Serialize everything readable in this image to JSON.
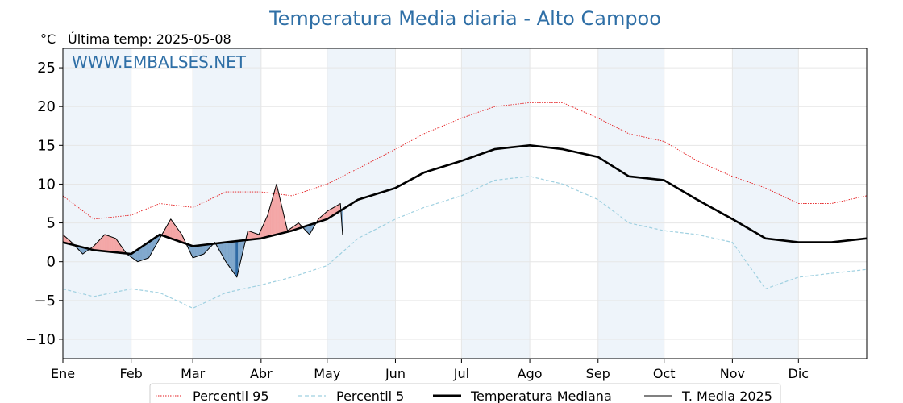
{
  "chart_data": {
    "type": "line",
    "title": "Temperatura Media diaria - Alto Campoo",
    "unit_label": "°C",
    "last_temp_label": "Última temp: 2025-05-08",
    "watermark": "WWW.EMBALSES.NET",
    "xlabel": "",
    "ylabel": "",
    "ylim": [
      -12.5,
      27.5
    ],
    "yticks": [
      -10,
      -5,
      0,
      5,
      10,
      15,
      20,
      25
    ],
    "xlim": [
      1,
      366
    ],
    "months": [
      {
        "label": "Ene",
        "day": 1
      },
      {
        "label": "Feb",
        "day": 32
      },
      {
        "label": "Mar",
        "day": 60
      },
      {
        "label": "Abr",
        "day": 91
      },
      {
        "label": "May",
        "day": 121
      },
      {
        "label": "Jun",
        "day": 152
      },
      {
        "label": "Jul",
        "day": 182
      },
      {
        "label": "Ago",
        "day": 213
      },
      {
        "label": "Sep",
        "day": 244
      },
      {
        "label": "Oct",
        "day": 274
      },
      {
        "label": "Nov",
        "day": 305
      },
      {
        "label": "Dic",
        "day": 335
      }
    ],
    "grid": true,
    "legend_position": "bottom",
    "colors": {
      "p95": "#e41a1c",
      "p5": "#9fd0e0",
      "median": "#000000",
      "current": "#000000",
      "above_fill": "#f4a6a6",
      "below_fill": "#7fa7cc",
      "extreme_below_fill": "#2a66a2",
      "band": "#eef4fa",
      "title": "#2f6fa6"
    },
    "series": [
      {
        "name": "Percentil 95",
        "key": "p95",
        "style": "dotted",
        "x": [
          1,
          15,
          32,
          45,
          60,
          75,
          91,
          105,
          121,
          135,
          152,
          165,
          182,
          197,
          213,
          228,
          244,
          258,
          274,
          289,
          305,
          320,
          335,
          350,
          366
        ],
        "y": [
          8.5,
          5.5,
          6,
          7.5,
          7,
          9,
          9,
          8.5,
          10,
          12,
          14.5,
          16.5,
          18.5,
          20,
          20.5,
          20.5,
          18.5,
          16.5,
          15.5,
          13,
          11,
          9.5,
          7.5,
          7.5,
          8.5
        ]
      },
      {
        "name": "Percentil 5",
        "key": "p5",
        "style": "dashed",
        "x": [
          1,
          15,
          32,
          45,
          60,
          75,
          91,
          105,
          121,
          135,
          152,
          165,
          182,
          197,
          213,
          228,
          244,
          258,
          274,
          289,
          305,
          320,
          335,
          350,
          366
        ],
        "y": [
          -3.5,
          -4.5,
          -3.5,
          -4,
          -6,
          -4,
          -3,
          -2,
          -0.5,
          3,
          5.5,
          7,
          8.5,
          10.5,
          11,
          10,
          8,
          5,
          4,
          3.5,
          2.5,
          -3.5,
          -2,
          -1.5,
          -1
        ]
      },
      {
        "name": "Temperatura Mediana",
        "key": "median",
        "style": "solid-thick",
        "x": [
          1,
          15,
          32,
          45,
          60,
          75,
          91,
          105,
          121,
          135,
          152,
          165,
          182,
          197,
          213,
          228,
          244,
          258,
          274,
          289,
          305,
          320,
          335,
          350,
          366
        ],
        "y": [
          2.5,
          1.5,
          1,
          3.5,
          2,
          2.5,
          3,
          4,
          5.5,
          8,
          9.5,
          11.5,
          13,
          14.5,
          15,
          14.5,
          13.5,
          11,
          10.5,
          8,
          5.5,
          3,
          2.5,
          2.5,
          3
        ]
      },
      {
        "name": "T. Media 2025",
        "key": "current",
        "style": "solid-thin",
        "x": [
          1,
          5,
          10,
          15,
          20,
          25,
          30,
          35,
          40,
          45,
          50,
          55,
          60,
          65,
          70,
          75,
          80,
          85,
          90,
          94,
          98,
          103,
          108,
          113,
          117,
          121,
          124,
          127,
          128
        ],
        "y": [
          3.5,
          2.5,
          1,
          2,
          3.5,
          3,
          1,
          0,
          0.5,
          3,
          5.5,
          3.5,
          0.5,
          1,
          2.5,
          0,
          -2,
          4,
          3.5,
          6,
          10,
          4,
          5,
          3.5,
          5.5,
          6.5,
          7,
          7.5,
          3.5
        ]
      }
    ]
  },
  "legend": {
    "p95": "Percentil 95",
    "p5": "Percentil 5",
    "median": "Temperatura Mediana",
    "current": "T. Media 2025"
  }
}
